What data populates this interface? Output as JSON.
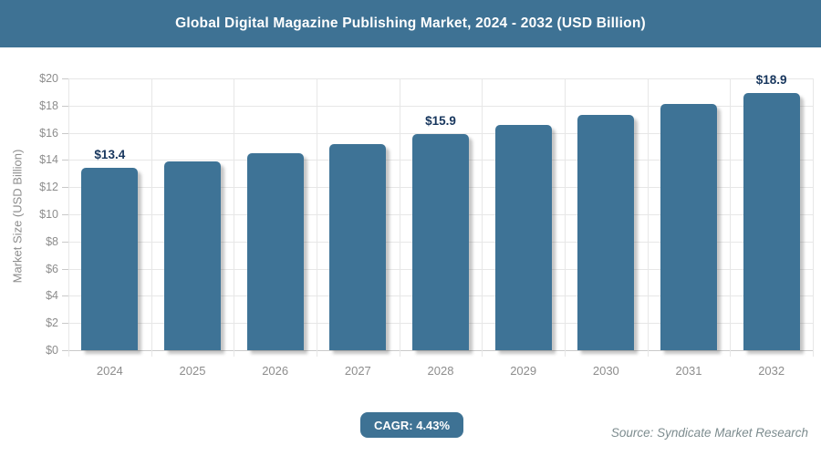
{
  "title_bar": {
    "title": "Global Digital Magazine Publishing Market, 2024 - 2032 (USD Billion)"
  },
  "y_axis": {
    "title": "Market Size (USD Billion)"
  },
  "footer": {
    "cagr": "CAGR: 4.43%",
    "source": "Source: Syndicate Market Research"
  },
  "colors": {
    "header_bg": "#3e7294",
    "header_text": "#ffffff",
    "bar": "#3e7396",
    "value_label": "#17365d",
    "grid": "#e7e7e7",
    "axis_line": "#c9c9c9",
    "axis_text": "#8d8d8d",
    "badge_bg": "#3e7294",
    "badge_text": "#ffffff",
    "source_text": "#7d8c8f"
  },
  "chart_data": {
    "type": "bar",
    "title": "Global Digital Magazine Publishing Market, 2024 - 2032 (USD Billion)",
    "categories": [
      "2024",
      "2025",
      "2026",
      "2027",
      "2028",
      "2029",
      "2030",
      "2031",
      "2032"
    ],
    "values": [
      13.4,
      13.9,
      14.5,
      15.2,
      15.9,
      16.6,
      17.3,
      18.1,
      18.9
    ],
    "value_labels": [
      "$13.4",
      "",
      "",
      "",
      "$15.9",
      "",
      "",
      "",
      "$18.9"
    ],
    "xlabel": "",
    "ylabel": "Market Size (USD Billion)",
    "ylim": [
      0,
      20
    ],
    "ytick_step": 2,
    "ytick_prefix": "$",
    "grid": true,
    "legend": false,
    "annotations": [
      "CAGR: 4.43%"
    ]
  }
}
